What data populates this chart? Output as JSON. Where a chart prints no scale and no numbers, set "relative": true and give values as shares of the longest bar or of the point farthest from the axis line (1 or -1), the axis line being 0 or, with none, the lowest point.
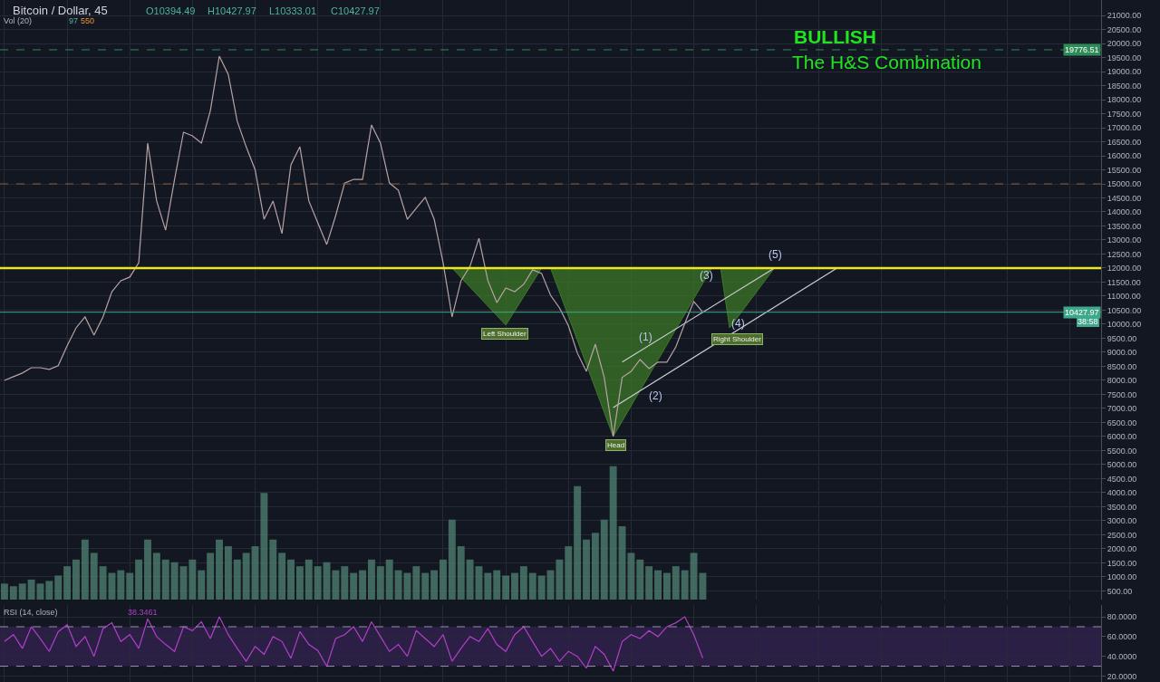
{
  "chart_data": [
    {
      "type": "line",
      "categories": [
        null,
        null,
        null,
        null,
        null,
        null,
        null,
        null,
        null,
        null,
        null,
        null,
        null,
        null,
        null,
        null,
        null,
        null,
        null,
        null,
        null,
        null,
        null,
        null,
        null,
        null,
        null,
        null,
        null,
        null,
        null,
        null,
        null,
        null,
        null,
        null,
        null,
        null,
        null,
        null,
        null,
        null,
        null,
        null,
        null,
        null,
        null,
        null,
        null,
        null,
        null,
        null,
        null,
        null,
        null,
        null,
        null,
        null,
        null,
        null,
        null,
        null,
        null,
        null,
        null,
        null,
        null,
        null,
        null,
        null,
        null,
        null,
        null,
        null,
        null,
        null,
        null,
        null,
        null,
        null,
        null,
        null,
        null,
        null,
        null,
        null,
        null,
        null,
        null,
        null,
        null,
        null,
        null,
        null,
        null,
        null,
        null,
        null,
        null,
        null,
        null,
        null,
        null,
        null,
        null,
        null,
        null,
        null,
        null,
        null,
        null,
        null,
        null,
        null,
        null,
        null,
        null,
        null,
        null,
        null,
        null,
        null,
        null
      ],
      "series": [
        {
          "type": "area",
          "color": "#3d7a27",
          "values": [
            null,
            null,
            null,
            null,
            null,
            null,
            null,
            null,
            null,
            null,
            null,
            null,
            null,
            null,
            null,
            null,
            null,
            null,
            null,
            null,
            null,
            null,
            null,
            null,
            null,
            null,
            null,
            null,
            null,
            null,
            null,
            null,
            null,
            null,
            null,
            null,
            null,
            null,
            null,
            null,
            null,
            null,
            null,
            null,
            null,
            null,
            null,
            null,
            null,
            null,
            12000,
            null,
            null,
            null,
            null,
            null,
            9970,
            null,
            null,
            null,
            12000,
            null,
            null,
            null,
            null,
            null,
            null,
            null,
            null,
            null,
            null,
            null,
            null,
            null,
            null,
            null,
            null,
            null,
            null,
            null,
            null,
            null,
            null,
            null,
            null,
            null,
            null,
            null,
            null,
            null,
            null,
            null,
            null,
            null,
            null,
            null,
            null,
            null,
            null,
            null,
            null,
            null,
            null,
            null,
            null,
            null,
            null,
            null,
            null,
            null,
            null,
            null,
            null,
            null,
            null,
            null,
            null,
            null,
            null,
            null,
            null,
            null,
            null
          ]
        },
        {
          "type": "area",
          "color": "#3d7a27",
          "values": [
            null,
            null,
            null,
            null,
            null,
            null,
            null,
            null,
            null,
            null,
            null,
            null,
            null,
            null,
            null,
            null,
            null,
            null,
            null,
            null,
            null,
            null,
            null,
            null,
            null,
            null,
            null,
            null,
            null,
            null,
            null,
            null,
            null,
            null,
            null,
            null,
            null,
            null,
            null,
            null,
            null,
            null,
            null,
            null,
            null,
            null,
            null,
            null,
            null,
            null,
            null,
            null,
            null,
            null,
            null,
            null,
            null,
            null,
            null,
            null,
            null,
            12000,
            null,
            null,
            null,
            null,
            null,
            null,
            6000,
            null,
            null,
            null,
            null,
            null,
            null,
            null,
            null,
            null,
            null,
            12000,
            null,
            null,
            null,
            null,
            null,
            null,
            null,
            null,
            null,
            null,
            null,
            null,
            null,
            null,
            null,
            null,
            null,
            null,
            null,
            null,
            null,
            null,
            null,
            null,
            null,
            null,
            null,
            null,
            null,
            null,
            null,
            null,
            null,
            null,
            null,
            null,
            null,
            null,
            null,
            null,
            null,
            null,
            null
          ]
        },
        {
          "type": "area",
          "color": "#3d7a27",
          "values": [
            null,
            null,
            null,
            null,
            null,
            null,
            null,
            null,
            null,
            null,
            null,
            null,
            null,
            null,
            null,
            null,
            null,
            null,
            null,
            null,
            null,
            null,
            null,
            null,
            null,
            null,
            null,
            null,
            null,
            null,
            null,
            null,
            null,
            null,
            null,
            null,
            null,
            null,
            null,
            null,
            null,
            null,
            null,
            null,
            null,
            null,
            null,
            null,
            null,
            null,
            null,
            null,
            null,
            null,
            null,
            null,
            null,
            null,
            null,
            null,
            null,
            null,
            null,
            null,
            null,
            null,
            null,
            null,
            null,
            null,
            null,
            null,
            null,
            null,
            null,
            null,
            null,
            null,
            null,
            null,
            12000,
            9870,
            null,
            null,
            null,
            null,
            12000,
            null,
            null,
            null,
            null,
            null,
            null,
            null,
            null,
            null,
            null,
            null,
            null,
            null,
            null,
            null,
            null,
            null,
            null,
            null,
            null,
            null,
            null,
            null,
            null,
            null,
            null,
            null,
            null,
            null,
            null,
            null,
            null,
            null,
            null,
            null,
            null
          ]
        },
        {
          "color": "#c8ccd4",
          "values": [
            null,
            null,
            null,
            null,
            null,
            null,
            null,
            null,
            null,
            null,
            null,
            null,
            null,
            null,
            null,
            null,
            null,
            null,
            null,
            null,
            null,
            null,
            null,
            null,
            null,
            null,
            null,
            null,
            null,
            null,
            null,
            null,
            null,
            null,
            null,
            null,
            null,
            null,
            null,
            null,
            null,
            null,
            null,
            null,
            null,
            null,
            null,
            null,
            null,
            null,
            null,
            null,
            null,
            null,
            null,
            null,
            null,
            null,
            null,
            null,
            null,
            null,
            null,
            null,
            null,
            null,
            null,
            null,
            null,
            8650,
            null,
            null,
            null,
            null,
            null,
            null,
            null,
            null,
            null,
            null,
            null,
            null,
            null,
            null,
            null,
            null,
            12000,
            null,
            null,
            null,
            null,
            null,
            null,
            null,
            null,
            null,
            null,
            null,
            null,
            null,
            null,
            null,
            null,
            null,
            null,
            null,
            null,
            null,
            null,
            null,
            null,
            null,
            null,
            null,
            null,
            null,
            null,
            null,
            null,
            null,
            null,
            null,
            null
          ]
        },
        {
          "color": "#c8ccd4",
          "values": [
            null,
            null,
            null,
            null,
            null,
            null,
            null,
            null,
            null,
            null,
            null,
            null,
            null,
            null,
            null,
            null,
            null,
            null,
            null,
            null,
            null,
            null,
            null,
            null,
            null,
            null,
            null,
            null,
            null,
            null,
            null,
            null,
            null,
            null,
            null,
            null,
            null,
            null,
            null,
            null,
            null,
            null,
            null,
            null,
            null,
            null,
            null,
            null,
            null,
            null,
            null,
            null,
            null,
            null,
            null,
            null,
            null,
            null,
            null,
            null,
            null,
            null,
            null,
            null,
            null,
            null,
            null,
            null,
            7030,
            null,
            null,
            null,
            null,
            null,
            null,
            null,
            null,
            null,
            null,
            null,
            null,
            null,
            null,
            null,
            null,
            null,
            null,
            null,
            null,
            null,
            null,
            null,
            null,
            12000,
            null,
            null,
            null,
            null,
            null,
            null,
            null,
            null,
            null,
            null,
            null,
            null,
            null,
            null,
            null,
            null,
            null,
            null,
            null,
            null,
            null,
            null,
            null,
            null,
            null,
            null,
            null,
            null,
            null
          ]
        },
        {
          "color": "#b7a3a6",
          "values": [
            8000,
            8130,
            8260,
            8450,
            8450,
            8390,
            8520,
            9230,
            9870,
            10260,
            9610,
            10260,
            11160,
            11550,
            11680,
            12190,
            16450,
            14390,
            13350,
            15160,
            16840,
            16710,
            16450,
            17610,
            19550,
            18900,
            17230,
            16320,
            15500,
            13740,
            14390,
            13230,
            15680,
            16320,
            14390,
            13610,
            12840,
            13870,
            15030,
            15160,
            15160,
            17100,
            16450,
            15030,
            14770,
            13740,
            14130,
            14520,
            13740,
            12190,
            10260,
            11550,
            12060,
            13060,
            11550,
            10770,
            11290,
            11160,
            11420,
            11940,
            11810,
            11030,
            10580,
            9940,
            8970,
            8320,
            9290,
            8100,
            6000,
            8100,
            8320,
            8740,
            8420,
            8650,
            8650,
            9190,
            10030,
            10810,
            10427.97,
            null,
            null,
            null,
            null,
            null,
            null,
            null,
            null,
            null,
            null,
            null,
            null,
            null,
            null,
            null,
            null,
            null,
            null,
            null,
            null,
            null,
            null,
            null,
            null,
            null,
            null,
            null,
            null,
            null,
            null,
            null,
            null,
            null,
            null,
            null,
            null,
            null,
            null,
            null,
            null,
            null,
            null,
            null,
            null
          ]
        }
      ],
      "ylim": [
        190,
        21550
      ],
      "yticks": [
        {
          "value": 500,
          "label": "500.00"
        },
        {
          "value": 1000,
          "label": "1000.00"
        },
        {
          "value": 1500,
          "label": "1500.00"
        },
        {
          "value": 2000,
          "label": "2000.00"
        },
        {
          "value": 2500,
          "label": "2500.00"
        },
        {
          "value": 3000,
          "label": "3000.00"
        },
        {
          "value": 3500,
          "label": "3500.00"
        },
        {
          "value": 4000,
          "label": "4000.00"
        },
        {
          "value": 4500,
          "label": "4500.00"
        },
        {
          "value": 5000,
          "label": "5000.00"
        },
        {
          "value": 5500,
          "label": "5500.00"
        },
        {
          "value": 6000,
          "label": "6000.00"
        },
        {
          "value": 6500,
          "label": "6500.00"
        },
        {
          "value": 7000,
          "label": "7000.00"
        },
        {
          "value": 7500,
          "label": "7500.00"
        },
        {
          "value": 8000,
          "label": "8000.00"
        },
        {
          "value": 8500,
          "label": "8500.00"
        },
        {
          "value": 9000,
          "label": "9000.00"
        },
        {
          "value": 9500,
          "label": "9500.00"
        },
        {
          "value": 10000,
          "label": "10000.00"
        },
        {
          "value": 10500,
          "label": "10500.00"
        },
        {
          "value": 11000,
          "label": "11000.00"
        },
        {
          "value": 11500,
          "label": "11500.00"
        },
        {
          "value": 12000,
          "label": "12000.00"
        },
        {
          "value": 12500,
          "label": "12500.00"
        },
        {
          "value": 13000,
          "label": "13000.00"
        },
        {
          "value": 13500,
          "label": "13500.00"
        },
        {
          "value": 14000,
          "label": "14000.00"
        },
        {
          "value": 14500,
          "label": "14500.00"
        },
        {
          "value": 15000,
          "label": "15000.00"
        },
        {
          "value": 15500,
          "label": "15500.00"
        },
        {
          "value": 16000,
          "label": "16000.00"
        },
        {
          "value": 16500,
          "label": "16500.00"
        },
        {
          "value": 17000,
          "label": "17000.00"
        },
        {
          "value": 17500,
          "label": "17500.00"
        },
        {
          "value": 18000,
          "label": "18000.00"
        },
        {
          "value": 18500,
          "label": "18500.00"
        },
        {
          "value": 19000,
          "label": "19000.00"
        },
        {
          "value": 19500,
          "label": "19500.00"
        },
        {
          "value": 20000,
          "label": "20000.00"
        },
        {
          "value": 20500,
          "label": "20500.00"
        },
        {
          "value": 21000,
          "label": "21000.00"
        }
      ],
      "tick_labels": "y",
      "grid": true,
      "ref_lines": [
        {
          "axis": "y",
          "value": 19776.51,
          "label": "19776.51",
          "color": "#2e8b57",
          "line_style": "dashed"
        },
        {
          "axis": "y",
          "value": 15000,
          "color": "#8a5a3a",
          "line_style": "dashed"
        },
        {
          "axis": "y",
          "value": 12000,
          "color": "#f0e816",
          "line_style": "solid"
        },
        {
          "axis": "y",
          "value": 10427.97,
          "label": "10427.97",
          "color": "#3fa88a",
          "line_style": "solid"
        }
      ],
      "annotations": [
        "Bitcoin / Dollar, 45",
        "O10394.49",
        "H10427.97",
        "L10333.01",
        "C10427.97",
        "Vol (20)",
        "97",
        "550",
        "BULLISH",
        "The H&S Combination",
        "38:58",
        "Left Shoulder",
        "Head",
        "Right Shoulder",
        "(1)",
        "(2)",
        "(3)",
        "(4)",
        "(5)"
      ]
    },
    {
      "type": "bar",
      "relative": true,
      "tick_labels": false,
      "color": "#4e7d6e",
      "categories": [
        null,
        null,
        null,
        null,
        null,
        null,
        null,
        null,
        null,
        null,
        null,
        null,
        null,
        null,
        null,
        null,
        null,
        null,
        null,
        null,
        null,
        null,
        null,
        null,
        null,
        null,
        null,
        null,
        null,
        null,
        null,
        null,
        null,
        null,
        null,
        null,
        null,
        null,
        null,
        null,
        null,
        null,
        null,
        null,
        null,
        null,
        null,
        null,
        null,
        null,
        null,
        null,
        null,
        null,
        null,
        null,
        null,
        null,
        null,
        null,
        null,
        null,
        null,
        null,
        null,
        null,
        null,
        null,
        null,
        null,
        null,
        null,
        null,
        null,
        null,
        null,
        null,
        null,
        null,
        null,
        null,
        null,
        null,
        null,
        null,
        null,
        null,
        null,
        null,
        null,
        null,
        null,
        null,
        null,
        null,
        null,
        null,
        null,
        null,
        null,
        null,
        null,
        null,
        null,
        null,
        null,
        null,
        null,
        null,
        null,
        null,
        null,
        null,
        null,
        null,
        null,
        null,
        null,
        null,
        null,
        null,
        null,
        null
      ],
      "values": [
        0.12,
        0.1,
        0.12,
        0.15,
        0.12,
        0.14,
        0.18,
        0.25,
        0.3,
        0.45,
        0.35,
        0.25,
        0.2,
        0.22,
        0.2,
        0.3,
        0.45,
        0.35,
        0.3,
        0.28,
        0.25,
        0.3,
        0.22,
        0.35,
        0.45,
        0.4,
        0.3,
        0.35,
        0.4,
        0.8,
        0.45,
        0.35,
        0.3,
        0.25,
        0.3,
        0.25,
        0.28,
        0.22,
        0.25,
        0.2,
        0.22,
        0.3,
        0.25,
        0.3,
        0.22,
        0.2,
        0.25,
        0.2,
        0.22,
        0.3,
        0.6,
        0.4,
        0.3,
        0.25,
        0.2,
        0.22,
        0.18,
        0.2,
        0.25,
        0.2,
        0.18,
        0.22,
        0.3,
        0.4,
        0.85,
        0.45,
        0.5,
        0.6,
        1,
        0.55,
        0.35,
        0.3,
        0.25,
        0.22,
        0.2,
        0.25,
        0.22,
        0.35,
        0.2,
        null,
        null,
        null,
        null,
        null,
        null,
        null,
        null,
        null,
        null,
        null,
        null,
        null,
        null,
        null,
        null,
        null,
        null,
        null,
        null,
        null,
        null,
        null,
        null,
        null,
        null,
        null,
        null,
        null,
        null,
        null,
        null,
        null,
        null,
        null,
        null,
        null,
        null,
        null,
        null,
        null,
        null,
        null,
        null
      ]
    },
    {
      "type": "line",
      "categories": [
        null,
        null,
        null,
        null,
        null,
        null,
        null,
        null,
        null,
        null,
        null,
        null,
        null,
        null,
        null,
        null,
        null,
        null,
        null,
        null,
        null,
        null,
        null,
        null,
        null,
        null,
        null,
        null,
        null,
        null,
        null,
        null,
        null,
        null,
        null,
        null,
        null,
        null,
        null,
        null,
        null,
        null,
        null,
        null,
        null,
        null,
        null,
        null,
        null,
        null,
        null,
        null,
        null,
        null,
        null,
        null,
        null,
        null,
        null,
        null,
        null,
        null,
        null,
        null,
        null,
        null,
        null,
        null,
        null,
        null,
        null,
        null,
        null,
        null,
        null,
        null,
        null,
        null,
        null,
        null,
        null,
        null,
        null,
        null,
        null,
        null,
        null,
        null,
        null,
        null,
        null,
        null,
        null,
        null,
        null,
        null,
        null,
        null,
        null,
        null,
        null,
        null,
        null,
        null,
        null,
        null,
        null,
        null,
        null,
        null,
        null,
        null,
        null,
        null,
        null,
        null,
        null,
        null,
        null,
        null,
        null,
        null,
        null
      ],
      "color": "#b03fc8",
      "values": [
        55,
        62,
        48,
        70,
        58,
        45,
        65,
        72,
        50,
        60,
        40,
        68,
        74,
        55,
        62,
        48,
        78,
        60,
        52,
        45,
        70,
        66,
        75,
        58,
        80,
        62,
        48,
        35,
        50,
        42,
        60,
        55,
        38,
        65,
        52,
        46,
        30,
        58,
        62,
        70,
        55,
        75,
        60,
        45,
        52,
        40,
        66,
        58,
        50,
        62,
        35,
        48,
        60,
        55,
        68,
        52,
        45,
        62,
        70,
        55,
        40,
        48,
        35,
        45,
        40,
        28,
        50,
        42,
        25,
        55,
        62,
        58,
        66,
        60,
        70,
        74,
        80,
        62,
        38.3461,
        null,
        null,
        null,
        null,
        null,
        null,
        null,
        null,
        null,
        null,
        null,
        null,
        null,
        null,
        null,
        null,
        null,
        null,
        null,
        null,
        null,
        null,
        null,
        null,
        null,
        null,
        null,
        null,
        null,
        null,
        null,
        null,
        null,
        null,
        null,
        null,
        null,
        null,
        null,
        null,
        null,
        null,
        null,
        null
      ],
      "ylim": [
        14,
        92
      ],
      "yticks": [
        {
          "value": 20,
          "label": "20.0000"
        },
        {
          "value": 40,
          "label": "40.0000"
        },
        {
          "value": 60,
          "label": "60.0000"
        },
        {
          "value": 80,
          "label": "80.0000"
        }
      ],
      "tick_labels": "y",
      "grid": true,
      "ref_lines": [
        {
          "axis": "y",
          "value": 70,
          "color": "#9a8fb0",
          "line_style": "dashed"
        },
        {
          "axis": "y",
          "value": 30,
          "color": "#9a8fb0",
          "line_style": "dashed"
        }
      ],
      "bands": [
        {
          "axis": "y",
          "from": 30,
          "to": 70,
          "color": "#2b1f45"
        }
      ],
      "annotations": [
        "RSI (14, close)",
        "38.3461"
      ]
    }
  ]
}
